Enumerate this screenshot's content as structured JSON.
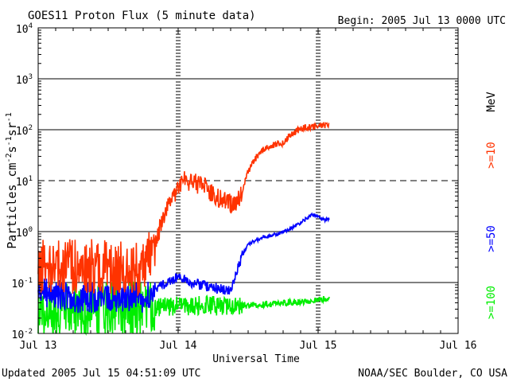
{
  "header": {
    "title": "GOES11 Proton Flux (5 minute data)",
    "begin": "Begin: 2005 Jul 13 0000 UTC"
  },
  "footer": {
    "updated": "Updated 2005 Jul 15 04:51:09 UTC",
    "credit": "NOAA/SEC Boulder, CO USA"
  },
  "chart_data": {
    "type": "line",
    "title": "GOES11 Proton Flux (5 minute data)",
    "xlabel": "Universal Time",
    "ylabel": "Particles cm-2s-1sr-1",
    "yscale": "log",
    "xlim": [
      0,
      72
    ],
    "ylim": [
      0.01,
      10000
    ],
    "x_ticks": [
      {
        "x": 0,
        "label": "Jul 13"
      },
      {
        "x": 24,
        "label": "Jul 14"
      },
      {
        "x": 48,
        "label": "Jul 15"
      },
      {
        "x": 72,
        "label": "Jul 16"
      }
    ],
    "y_ticks": [
      {
        "base": "10",
        "exp": "-2",
        "value": 0.01
      },
      {
        "base": "10",
        "exp": "-1",
        "value": 0.1
      },
      {
        "base": "10",
        "exp": "0",
        "value": 1
      },
      {
        "base": "10",
        "exp": "1",
        "value": 10
      },
      {
        "base": "10",
        "exp": "2",
        "value": 100
      },
      {
        "base": "10",
        "exp": "3",
        "value": 1000
      },
      {
        "base": "10",
        "exp": "4",
        "value": 10000
      }
    ],
    "grid": {
      "solid": [
        0.1,
        1,
        100,
        1000
      ],
      "dashed": [
        10
      ],
      "day_marks": [
        24,
        48
      ]
    },
    "unit_label": "MeV",
    "series": [
      {
        "name": ">=10",
        "color": "#ff3300",
        "noise": 0.55,
        "points": [
          [
            0,
            0.22
          ],
          [
            6,
            0.2
          ],
          [
            12,
            0.2
          ],
          [
            18,
            0.2
          ],
          [
            20,
            0.5
          ],
          [
            21,
            1.3
          ],
          [
            22,
            2.5
          ],
          [
            23,
            5
          ],
          [
            24,
            7
          ],
          [
            25,
            10
          ],
          [
            27,
            9
          ],
          [
            29,
            7
          ],
          [
            30,
            5
          ],
          [
            31,
            4.5
          ],
          [
            32,
            4
          ],
          [
            33,
            3.5
          ],
          [
            34,
            3.5
          ],
          [
            35,
            6
          ],
          [
            36,
            15
          ],
          [
            37,
            25
          ],
          [
            38,
            35
          ],
          [
            39,
            45
          ],
          [
            40,
            48
          ],
          [
            41,
            52
          ],
          [
            42,
            55
          ],
          [
            43,
            75
          ],
          [
            44,
            90
          ],
          [
            45,
            105
          ],
          [
            46,
            110
          ],
          [
            47,
            115
          ],
          [
            48,
            115
          ],
          [
            49,
            125
          ],
          [
            50,
            115
          ]
        ]
      },
      {
        "name": ">=50",
        "color": "#0000ff",
        "noise": 0.3,
        "points": [
          [
            0,
            0.06
          ],
          [
            3,
            0.06
          ],
          [
            6,
            0.05
          ],
          [
            9,
            0.05
          ],
          [
            12,
            0.05
          ],
          [
            15,
            0.05
          ],
          [
            18,
            0.05
          ],
          [
            20,
            0.07
          ],
          [
            22,
            0.1
          ],
          [
            24,
            0.13
          ],
          [
            26,
            0.1
          ],
          [
            28,
            0.09
          ],
          [
            30,
            0.08
          ],
          [
            32,
            0.07
          ],
          [
            33,
            0.07
          ],
          [
            34,
            0.15
          ],
          [
            35,
            0.35
          ],
          [
            36,
            0.55
          ],
          [
            37,
            0.65
          ],
          [
            39,
            0.8
          ],
          [
            41,
            0.9
          ],
          [
            43,
            1.1
          ],
          [
            45,
            1.5
          ],
          [
            46,
            1.8
          ],
          [
            47,
            2.2
          ],
          [
            48,
            2.0
          ],
          [
            49,
            1.7
          ],
          [
            50,
            1.7
          ]
        ]
      },
      {
        "name": ">=100",
        "color": "#00ee00",
        "noise": 0.55,
        "points": [
          [
            0,
            0.03
          ],
          [
            6,
            0.028
          ],
          [
            12,
            0.03
          ],
          [
            18,
            0.03
          ],
          [
            24,
            0.035
          ],
          [
            30,
            0.035
          ],
          [
            36,
            0.035
          ],
          [
            42,
            0.04
          ],
          [
            48,
            0.045
          ],
          [
            50,
            0.05
          ]
        ]
      }
    ]
  }
}
